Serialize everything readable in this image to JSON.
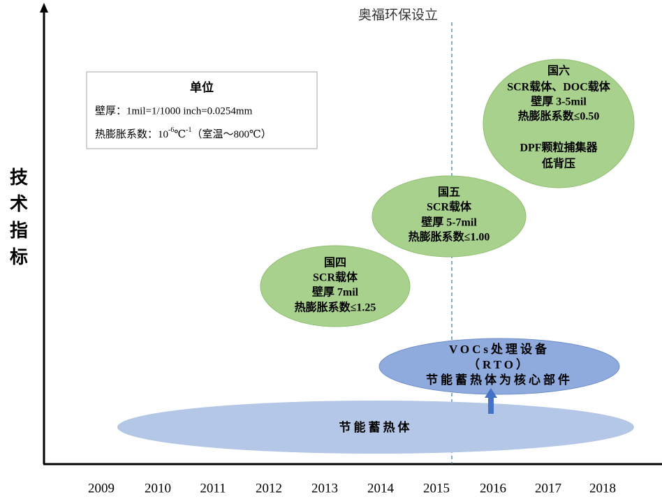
{
  "y_axis_label": "技术指标",
  "x_axis": {
    "labels": [
      "2009",
      "2010",
      "2011",
      "2012",
      "2013",
      "2014",
      "2015",
      "2016",
      "2017",
      "2018"
    ]
  },
  "milestone": {
    "label": "奥福环保设立"
  },
  "legend": {
    "title": "单位",
    "wall": "壁厚：1mil=1/1000  inch=0.0254mm",
    "cte": {
      "prefix": "热膨胀系数：10",
      "exp1": "-6",
      "mid": "℃",
      "exp2": "-1",
      "suffix": "（室温～800℃）"
    }
  },
  "nodes": [
    {
      "lines": [
        "国六",
        "SCR载体、DOC载体",
        "壁厚 3-5mil",
        "热膨胀系数≤0.50",
        "DPF颗粒捕集器",
        "低背压"
      ]
    },
    {
      "lines": [
        "国五",
        "SCR载体",
        "壁厚 5-7mil",
        "热膨胀系数≤1.00"
      ]
    },
    {
      "lines": [
        "国四",
        "SCR载体",
        "壁厚 7mil",
        "热膨胀系数≤1.25"
      ]
    },
    {
      "lines": [
        "VOCs处理设备",
        "（RTO）",
        "节能蓄热体为核心部件"
      ]
    },
    {
      "lines": [
        "节能蓄热体"
      ]
    }
  ]
}
